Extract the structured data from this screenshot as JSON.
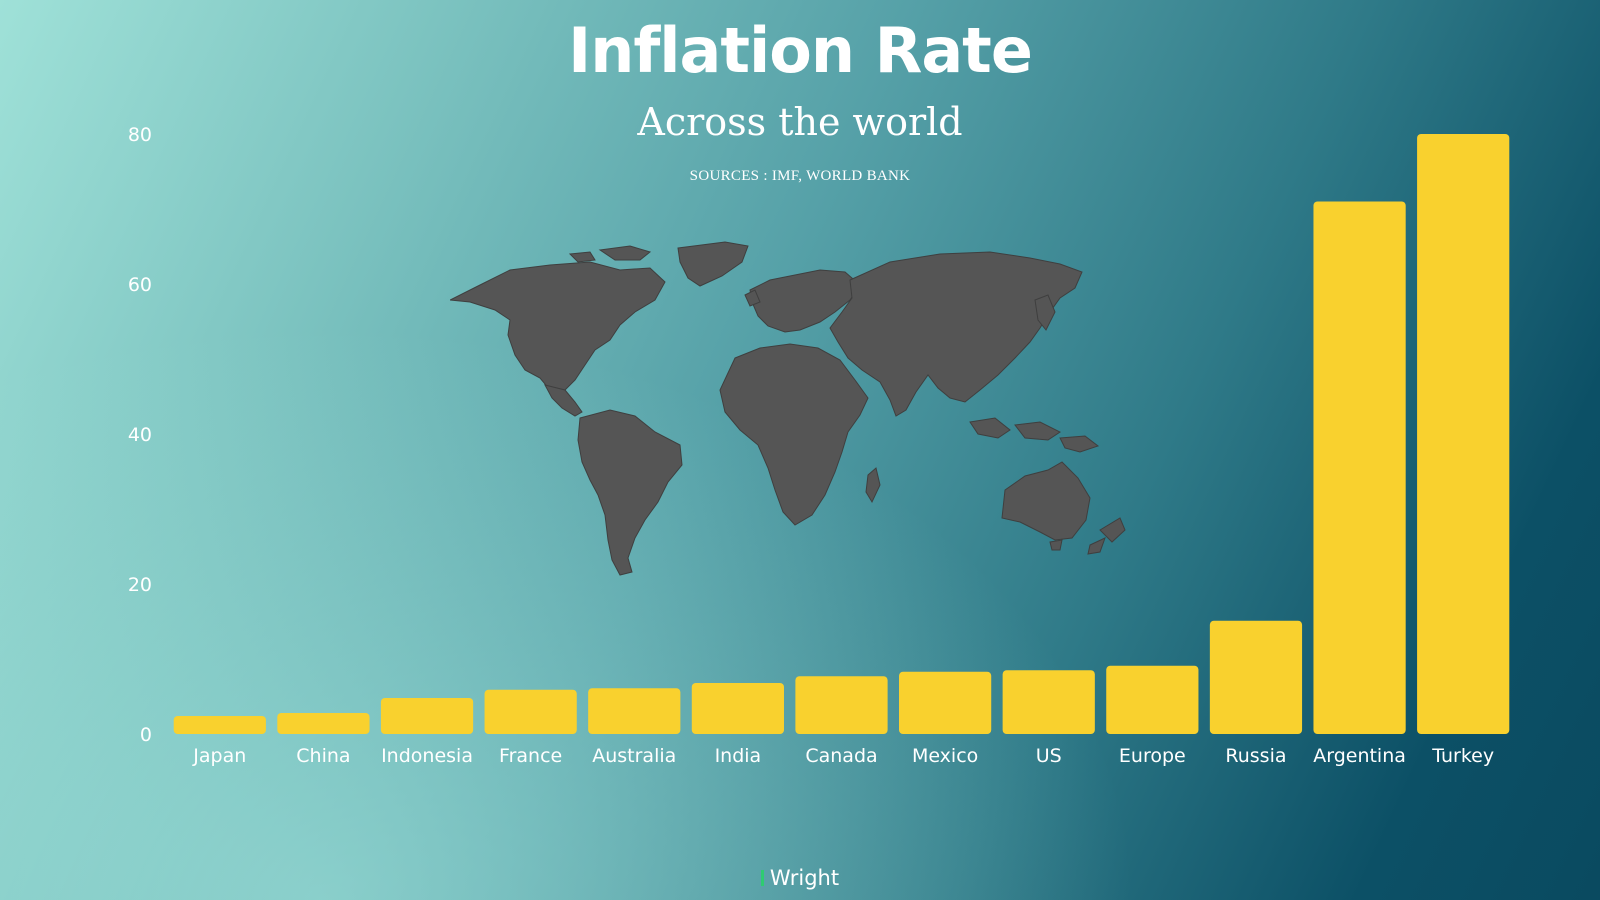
{
  "header": {
    "title": "Inflation Rate",
    "subtitle": "Across the world",
    "sources": "SOURCES : IMF, WORLD BANK"
  },
  "footer": {
    "brand": "Wright"
  },
  "colors": {
    "bar": "#F9D12E",
    "map": "#555555",
    "text": "#FFFFFF",
    "brand_mark": "#2ECC71"
  },
  "chart_data": {
    "type": "bar",
    "title": "Inflation Rate",
    "subtitle": "Across the world",
    "categories": [
      "Japan",
      "China",
      "Indonesia",
      "France",
      "Australia",
      "India",
      "Canada",
      "Mexico",
      "US",
      "Europe",
      "Russia",
      "Argentina",
      "Turkey"
    ],
    "values": [
      2.4,
      2.8,
      4.8,
      5.9,
      6.1,
      6.8,
      7.7,
      8.3,
      8.5,
      9.1,
      15.1,
      71.0,
      80.0
    ],
    "yticks": [
      0,
      20,
      40,
      60,
      80
    ],
    "ylim": [
      0,
      80
    ],
    "xlabel": "",
    "ylabel": "",
    "grid": false,
    "legend": "none"
  }
}
